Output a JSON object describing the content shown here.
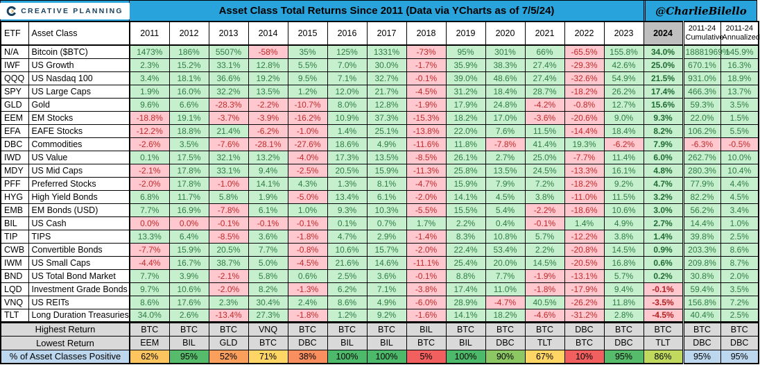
{
  "header": {
    "brand": "CREATIVE PLANNING",
    "title": "Asset Class Total Returns Since 2011 (Data via YCharts as of 7/5/24)",
    "credit": "@CharlieBilello"
  },
  "colors": {
    "topbar_blue": "#29A3DC",
    "positive_bg": "#C6EFCE",
    "positive_text": "#2E7D41",
    "negative_bg": "#FFC7CE",
    "negative_text": "#C02B2B",
    "header_2024_bg": "#BFBFBF",
    "footer_gray": "#D9D9D9",
    "footer_blue": "#BDD7EE",
    "logo_navy": "#17415F",
    "logo_gold": "#C9A04E"
  },
  "chart_data": {
    "type": "table",
    "title": "Asset Class Total Returns Since 2011 (Data via YCharts as of 7/5/24)",
    "columns": [
      {
        "id": "etf",
        "label": "ETF"
      },
      {
        "id": "asset_class",
        "label": "Asset Class"
      },
      {
        "id": "y2011",
        "label": "2011"
      },
      {
        "id": "y2012",
        "label": "2012"
      },
      {
        "id": "y2013",
        "label": "2013"
      },
      {
        "id": "y2014",
        "label": "2014"
      },
      {
        "id": "y2015",
        "label": "2015"
      },
      {
        "id": "y2016",
        "label": "2016"
      },
      {
        "id": "y2017",
        "label": "2017"
      },
      {
        "id": "y2018",
        "label": "2018"
      },
      {
        "id": "y2019",
        "label": "2019"
      },
      {
        "id": "y2020",
        "label": "2020"
      },
      {
        "id": "y2021",
        "label": "2021"
      },
      {
        "id": "y2022",
        "label": "2022"
      },
      {
        "id": "y2023",
        "label": "2023"
      },
      {
        "id": "y2024",
        "label": "2024",
        "gray": true
      },
      {
        "id": "cumulative",
        "label_top": "2011-24",
        "label_bottom": "Cumulative"
      },
      {
        "id": "annualized",
        "label_top": "2011-24",
        "label_bottom": "Annualized"
      }
    ],
    "rows": [
      {
        "etf": "N/A",
        "asset_class": "Bitcoin ($BTC)",
        "values": [
          "1473%",
          "186%",
          "5507%",
          "-58%",
          "35%",
          "125%",
          "1331%",
          "-73%",
          "95%",
          "301%",
          "66%",
          "-65.5%",
          "155.8%",
          "34.0%",
          "18881969%",
          "145.9%"
        ]
      },
      {
        "etf": "IWF",
        "asset_class": "US Growth",
        "values": [
          "2.3%",
          "15.2%",
          "33.1%",
          "12.8%",
          "5.5%",
          "7.0%",
          "30.0%",
          "-1.7%",
          "35.9%",
          "38.3%",
          "27.4%",
          "-29.3%",
          "42.6%",
          "25.0%",
          "670.1%",
          "16.3%"
        ]
      },
      {
        "etf": "QQQ",
        "asset_class": "US Nasdaq 100",
        "values": [
          "3.4%",
          "18.1%",
          "36.6%",
          "19.2%",
          "9.5%",
          "7.1%",
          "32.7%",
          "-0.1%",
          "39.0%",
          "48.6%",
          "27.4%",
          "-32.6%",
          "54.9%",
          "21.5%",
          "931.0%",
          "18.9%"
        ]
      },
      {
        "etf": "SPY",
        "asset_class": "US Large Caps",
        "values": [
          "1.9%",
          "16.0%",
          "32.2%",
          "13.5%",
          "1.2%",
          "12.0%",
          "21.7%",
          "-4.5%",
          "31.2%",
          "18.4%",
          "28.7%",
          "-18.2%",
          "26.2%",
          "17.4%",
          "466.3%",
          "13.7%"
        ]
      },
      {
        "etf": "GLD",
        "asset_class": "Gold",
        "values": [
          "9.6%",
          "6.6%",
          "-28.3%",
          "-2.2%",
          "-10.7%",
          "8.0%",
          "12.8%",
          "-1.9%",
          "17.9%",
          "24.8%",
          "-4.2%",
          "-0.8%",
          "12.7%",
          "15.6%",
          "59.3%",
          "3.5%"
        ]
      },
      {
        "etf": "EEM",
        "asset_class": "EM Stocks",
        "values": [
          "-18.8%",
          "19.1%",
          "-3.7%",
          "-3.9%",
          "-16.2%",
          "10.9%",
          "37.3%",
          "-15.3%",
          "18.2%",
          "17.0%",
          "-3.6%",
          "-20.6%",
          "9.0%",
          "9.3%",
          "22.0%",
          "1.5%"
        ]
      },
      {
        "etf": "EFA",
        "asset_class": "EAFE Stocks",
        "values": [
          "-12.2%",
          "18.8%",
          "21.4%",
          "-6.2%",
          "-1.0%",
          "1.4%",
          "25.1%",
          "-13.8%",
          "22.0%",
          "7.6%",
          "11.5%",
          "-14.4%",
          "18.4%",
          "8.2%",
          "106.2%",
          "5.5%"
        ]
      },
      {
        "etf": "DBC",
        "asset_class": "Commodities",
        "values": [
          "-2.6%",
          "3.5%",
          "-7.6%",
          "-28.1%",
          "-27.6%",
          "18.6%",
          "4.9%",
          "-11.6%",
          "11.8%",
          "-7.8%",
          "41.4%",
          "19.3%",
          "-6.2%",
          "7.9%",
          "-6.3%",
          "-0.5%"
        ]
      },
      {
        "etf": "IWD",
        "asset_class": "US Value",
        "values": [
          "0.1%",
          "17.5%",
          "32.1%",
          "13.2%",
          "-4.0%",
          "17.3%",
          "13.5%",
          "-8.5%",
          "26.1%",
          "2.7%",
          "25.0%",
          "-7.7%",
          "11.4%",
          "6.0%",
          "262.7%",
          "10.0%"
        ]
      },
      {
        "etf": "MDY",
        "asset_class": "US Mid Caps",
        "values": [
          "-2.1%",
          "17.8%",
          "33.1%",
          "9.4%",
          "-2.5%",
          "20.5%",
          "15.9%",
          "-11.3%",
          "25.8%",
          "13.5%",
          "24.5%",
          "-13.3%",
          "16.1%",
          "4.8%",
          "280.3%",
          "10.4%"
        ]
      },
      {
        "etf": "PFF",
        "asset_class": "Preferred Stocks",
        "values": [
          "-2.0%",
          "17.8%",
          "-1.0%",
          "14.1%",
          "4.3%",
          "1.3%",
          "8.1%",
          "-4.7%",
          "15.9%",
          "7.9%",
          "7.2%",
          "-18.2%",
          "9.2%",
          "4.7%",
          "77.9%",
          "4.4%"
        ]
      },
      {
        "etf": "HYG",
        "asset_class": "High Yield Bonds",
        "values": [
          "6.8%",
          "11.7%",
          "5.8%",
          "1.9%",
          "-5.0%",
          "13.4%",
          "6.1%",
          "-2.0%",
          "14.1%",
          "4.5%",
          "3.8%",
          "-11.0%",
          "11.5%",
          "3.2%",
          "82.2%",
          "4.5%"
        ]
      },
      {
        "etf": "EMB",
        "asset_class": "EM Bonds (USD)",
        "values": [
          "7.7%",
          "16.9%",
          "-7.8%",
          "6.1%",
          "1.0%",
          "9.3%",
          "10.3%",
          "-5.5%",
          "15.5%",
          "5.4%",
          "-2.2%",
          "-18.6%",
          "10.6%",
          "3.0%",
          "56.2%",
          "3.4%"
        ]
      },
      {
        "etf": "BIL",
        "asset_class": "US Cash",
        "values": [
          "0.0%",
          "0.0%",
          "-0.1%",
          "-0.1%",
          "-0.1%",
          "0.1%",
          "0.7%",
          "1.7%",
          "2.2%",
          "0.4%",
          "-0.1%",
          "1.4%",
          "4.9%",
          "2.7%",
          "14.4%",
          "1.0%"
        ]
      },
      {
        "etf": "TIP",
        "asset_class": "TIPS",
        "values": [
          "13.3%",
          "6.4%",
          "-8.5%",
          "3.6%",
          "-1.8%",
          "4.7%",
          "2.9%",
          "-1.4%",
          "8.3%",
          "10.8%",
          "5.7%",
          "-12.2%",
          "3.8%",
          "1.4%",
          "39.8%",
          "2.5%"
        ]
      },
      {
        "etf": "CWB",
        "asset_class": "Convertible Bonds",
        "values": [
          "-7.7%",
          "15.9%",
          "20.5%",
          "7.7%",
          "-0.8%",
          "10.6%",
          "15.7%",
          "-2.0%",
          "22.4%",
          "53.4%",
          "2.2%",
          "-20.8%",
          "14.5%",
          "0.9%",
          "203.3%",
          "8.6%"
        ]
      },
      {
        "etf": "IWM",
        "asset_class": "US Small Caps",
        "values": [
          "-4.4%",
          "16.7%",
          "38.7%",
          "5.0%",
          "-4.5%",
          "21.6%",
          "14.6%",
          "-11.1%",
          "25.4%",
          "20.0%",
          "14.5%",
          "-20.5%",
          "16.8%",
          "0.6%",
          "209.8%",
          "8.7%"
        ]
      },
      {
        "etf": "BND",
        "asset_class": "US Total Bond Market",
        "values": [
          "7.7%",
          "3.9%",
          "-2.1%",
          "5.8%",
          "0.6%",
          "2.5%",
          "3.6%",
          "-0.1%",
          "8.8%",
          "7.7%",
          "-1.9%",
          "-13.1%",
          "5.7%",
          "0.2%",
          "30.8%",
          "2.0%"
        ]
      },
      {
        "etf": "LQD",
        "asset_class": "Investment Grade Bonds",
        "values": [
          "9.7%",
          "10.6%",
          "-2.0%",
          "8.2%",
          "-1.3%",
          "6.2%",
          "7.1%",
          "-3.8%",
          "17.4%",
          "11.0%",
          "-1.8%",
          "-17.9%",
          "9.4%",
          "-0.1%",
          "59.4%",
          "3.5%"
        ]
      },
      {
        "etf": "VNQ",
        "asset_class": "US REITs",
        "values": [
          "8.6%",
          "17.6%",
          "2.3%",
          "30.4%",
          "2.4%",
          "8.6%",
          "4.9%",
          "-6.0%",
          "28.9%",
          "-4.7%",
          "40.5%",
          "-26.2%",
          "11.8%",
          "-3.5%",
          "156.8%",
          "7.2%"
        ]
      },
      {
        "etf": "TLT",
        "asset_class": "Long Duration Treasuries",
        "values": [
          "34.0%",
          "2.6%",
          "-13.4%",
          "27.3%",
          "-1.8%",
          "1.2%",
          "9.2%",
          "-1.6%",
          "14.1%",
          "18.2%",
          "-4.6%",
          "-31.2%",
          "2.8%",
          "-4.5%",
          "40.4%",
          "2.5%"
        ]
      }
    ],
    "footer_rows": [
      {
        "label": "Highest Return",
        "style": "gray",
        "values": [
          "BTC",
          "BTC",
          "BTC",
          "VNQ",
          "BTC",
          "BTC",
          "BTC",
          "BIL",
          "BTC",
          "BTC",
          "BTC",
          "DBC",
          "BTC",
          "BTC",
          "BTC",
          "BTC"
        ]
      },
      {
        "label": "Lowest Return",
        "style": "gray",
        "values": [
          "EEM",
          "BIL",
          "GLD",
          "BTC",
          "DBC",
          "BIL",
          "BIL",
          "BTC",
          "BIL",
          "DBC",
          "TLT",
          "BTC",
          "DBC",
          "TLT",
          "DBC",
          "DBC"
        ]
      },
      {
        "label": "% of Asset Classes Positive",
        "style": "scale",
        "values": [
          "62%",
          "95%",
          "52%",
          "71%",
          "38%",
          "100%",
          "100%",
          "5%",
          "100%",
          "90%",
          "67%",
          "10%",
          "95%",
          "86%",
          "95%",
          "95%"
        ],
        "cell_colors": [
          "#FDC55F",
          "#57BB6C",
          "#FA9F5C",
          "#FFD666",
          "#F98E5E",
          "#4DB96A",
          "#4DB96A",
          "#F25F5F",
          "#4DB96A",
          "#8CC764",
          "#FFD666",
          "#F25F5F",
          "#57BB6C",
          "#C2D95F",
          "#BDD7EE",
          "#BDD7EE"
        ]
      }
    ]
  }
}
